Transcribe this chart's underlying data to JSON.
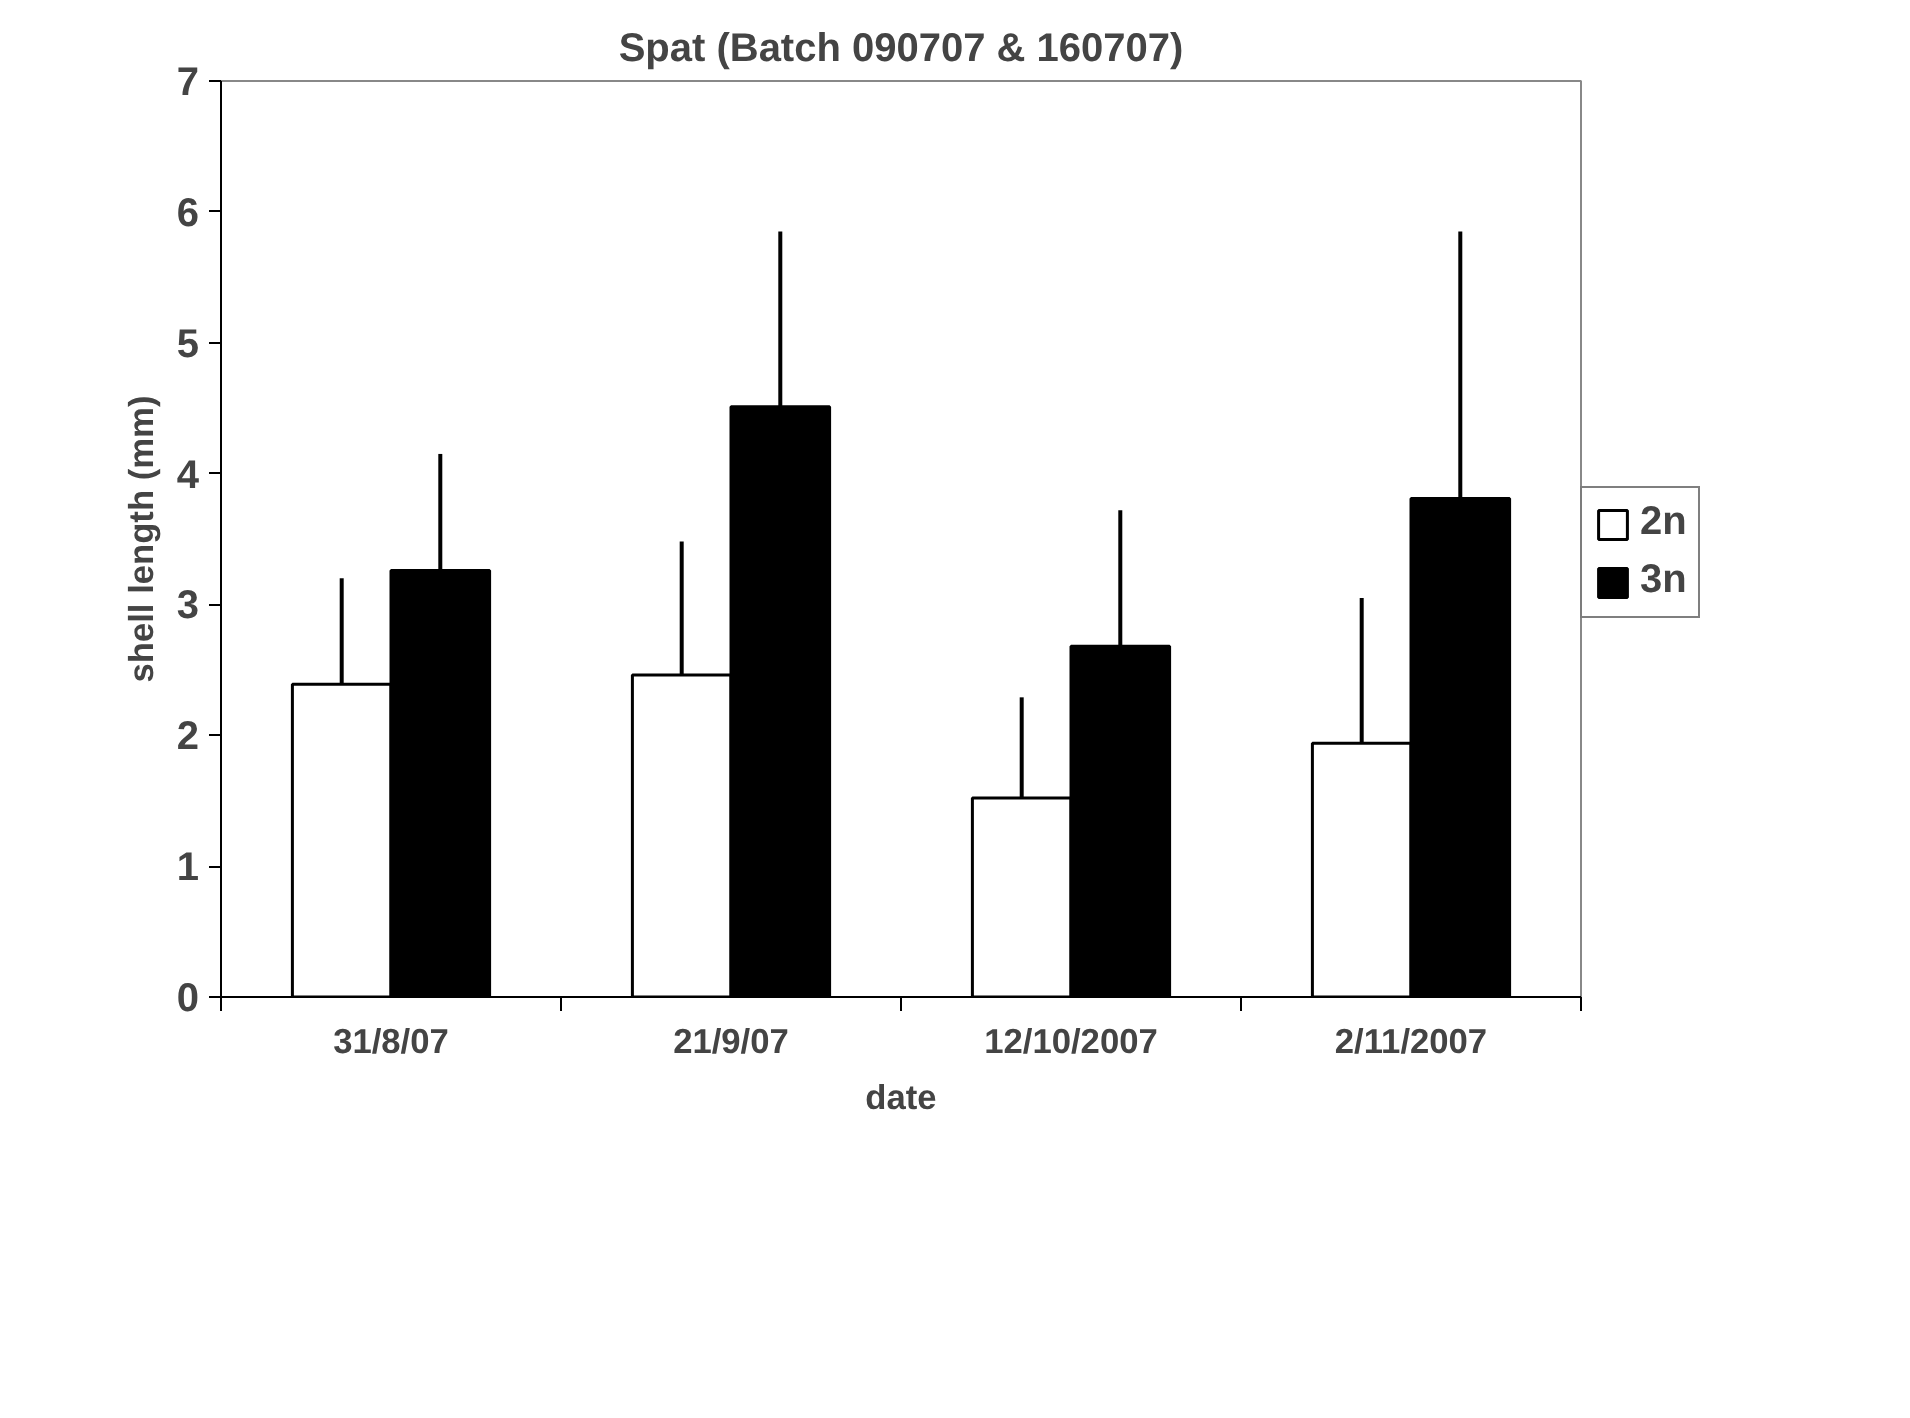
{
  "chart_data": {
    "type": "bar",
    "title": "Spat (Batch 090707 & 160707)",
    "xlabel": "date",
    "ylabel": "shell length (mm)",
    "categories": [
      "31/8/07",
      "21/9/07",
      "12/10/2007",
      "2/11/2007"
    ],
    "series": [
      {
        "name": "2n",
        "color": "#ffffff",
        "values": [
          2.39,
          2.46,
          1.52,
          1.94
        ],
        "errors": [
          [
            2.39,
            3.2
          ],
          [
            2.46,
            3.48
          ],
          [
            1.52,
            2.29
          ],
          [
            1.94,
            3.05
          ]
        ]
      },
      {
        "name": "3n",
        "color": "#000000",
        "values": [
          3.26,
          4.51,
          2.68,
          3.81
        ],
        "errors": [
          [
            3.26,
            4.15
          ],
          [
            4.51,
            5.85
          ],
          [
            2.68,
            3.72
          ],
          [
            3.81,
            5.85
          ]
        ]
      }
    ],
    "ylim": [
      0,
      7
    ],
    "yticks": [
      0,
      1,
      2,
      3,
      4,
      5,
      6,
      7
    ],
    "grid": false,
    "legend": "right"
  }
}
